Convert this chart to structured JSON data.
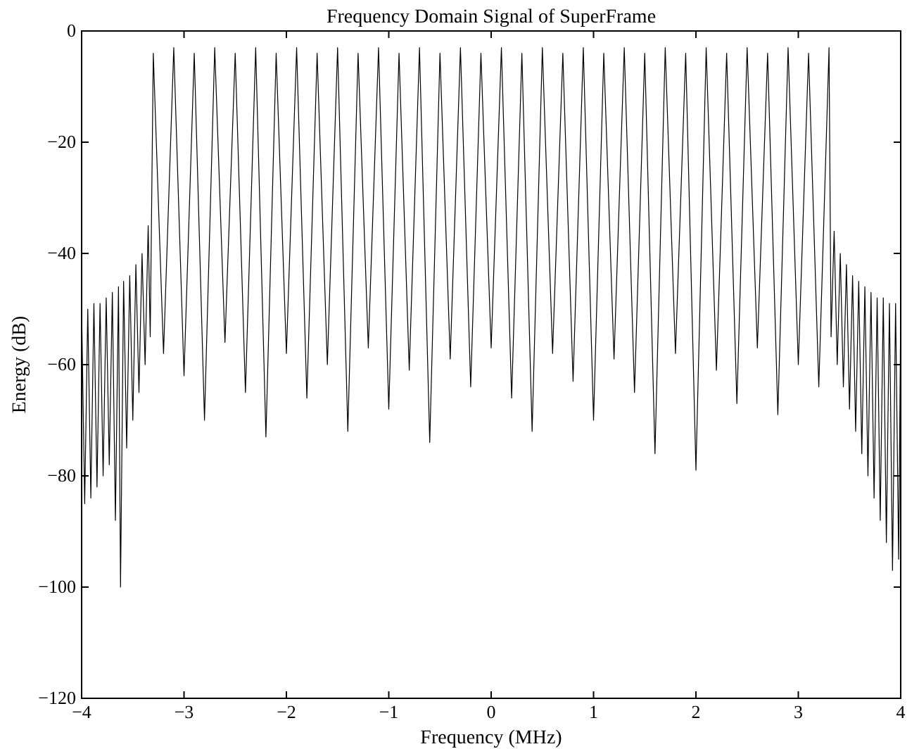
{
  "chart_data": {
    "type": "line",
    "title": "Frequency Domain Signal of SuperFrame",
    "xlabel": "Frequency (MHz)",
    "ylabel": "Energy (dB)",
    "xlim": [
      -4,
      4
    ],
    "ylim": [
      -120,
      0
    ],
    "xticks": [
      -4,
      -3,
      -2,
      -1,
      0,
      1,
      2,
      3,
      4
    ],
    "yticks": [
      -120,
      -100,
      -80,
      -60,
      -40,
      -20,
      0
    ],
    "grid": false,
    "marker": "none",
    "line_style": "solid",
    "series": [
      {
        "color": "#000000",
        "x": [
          -4.0,
          -3.97,
          -3.94,
          -3.91,
          -3.88,
          -3.85,
          -3.82,
          -3.79,
          -3.76,
          -3.73,
          -3.7,
          -3.67,
          -3.64,
          -3.62,
          -3.59,
          -3.56,
          -3.53,
          -3.5,
          -3.47,
          -3.44,
          -3.41,
          -3.38,
          -3.35,
          -3.33,
          -3.3,
          -3.2,
          -3.1,
          -3.0,
          -2.9,
          -2.8,
          -2.7,
          -2.6,
          -2.5,
          -2.4,
          -2.3,
          -2.2,
          -2.1,
          -2.0,
          -1.9,
          -1.8,
          -1.7,
          -1.6,
          -1.5,
          -1.4,
          -1.3,
          -1.2,
          -1.1,
          -1.0,
          -0.9,
          -0.8,
          -0.7,
          -0.6,
          -0.5,
          -0.4,
          -0.3,
          -0.2,
          -0.1,
          0.0,
          0.1,
          0.2,
          0.3,
          0.4,
          0.5,
          0.6,
          0.7,
          0.8,
          0.9,
          1.0,
          1.1,
          1.2,
          1.3,
          1.4,
          1.5,
          1.6,
          1.7,
          1.8,
          1.9,
          2.0,
          2.1,
          2.2,
          2.3,
          2.4,
          2.5,
          2.6,
          2.7,
          2.8,
          2.9,
          3.0,
          3.1,
          3.2,
          3.3,
          3.32,
          3.35,
          3.38,
          3.41,
          3.44,
          3.47,
          3.5,
          3.53,
          3.56,
          3.59,
          3.62,
          3.65,
          3.68,
          3.71,
          3.74,
          3.77,
          3.8,
          3.83,
          3.86,
          3.89,
          3.92,
          3.95,
          3.98,
          4.0
        ],
        "values": [
          -50,
          -85,
          -50,
          -84,
          -49,
          -82,
          -49,
          -80,
          -48,
          -78,
          -47,
          -88,
          -46,
          -100,
          -45,
          -75,
          -44,
          -70,
          -42,
          -65,
          -40,
          -60,
          -35,
          -55,
          -4,
          -58,
          -3,
          -62,
          -4,
          -70,
          -3,
          -56,
          -4,
          -65,
          -3,
          -73,
          -4,
          -58,
          -3,
          -66,
          -4,
          -60,
          -3,
          -72,
          -4,
          -57,
          -3,
          -68,
          -4,
          -61,
          -3,
          -74,
          -4,
          -59,
          -3,
          -64,
          -4,
          -57,
          -3,
          -66,
          -4,
          -72,
          -3,
          -58,
          -4,
          -63,
          -3,
          -70,
          -4,
          -59,
          -3,
          -65,
          -4,
          -76,
          -3,
          -58,
          -4,
          -79,
          -3,
          -61,
          -4,
          -67,
          -3,
          -57,
          -4,
          -69,
          -3,
          -60,
          -4,
          -64,
          -3,
          -55,
          -36,
          -60,
          -40,
          -64,
          -42,
          -68,
          -44,
          -72,
          -45,
          -76,
          -46,
          -80,
          -47,
          -84,
          -48,
          -88,
          -48,
          -92,
          -49,
          -97,
          -49,
          -95,
          -50
        ]
      }
    ]
  }
}
